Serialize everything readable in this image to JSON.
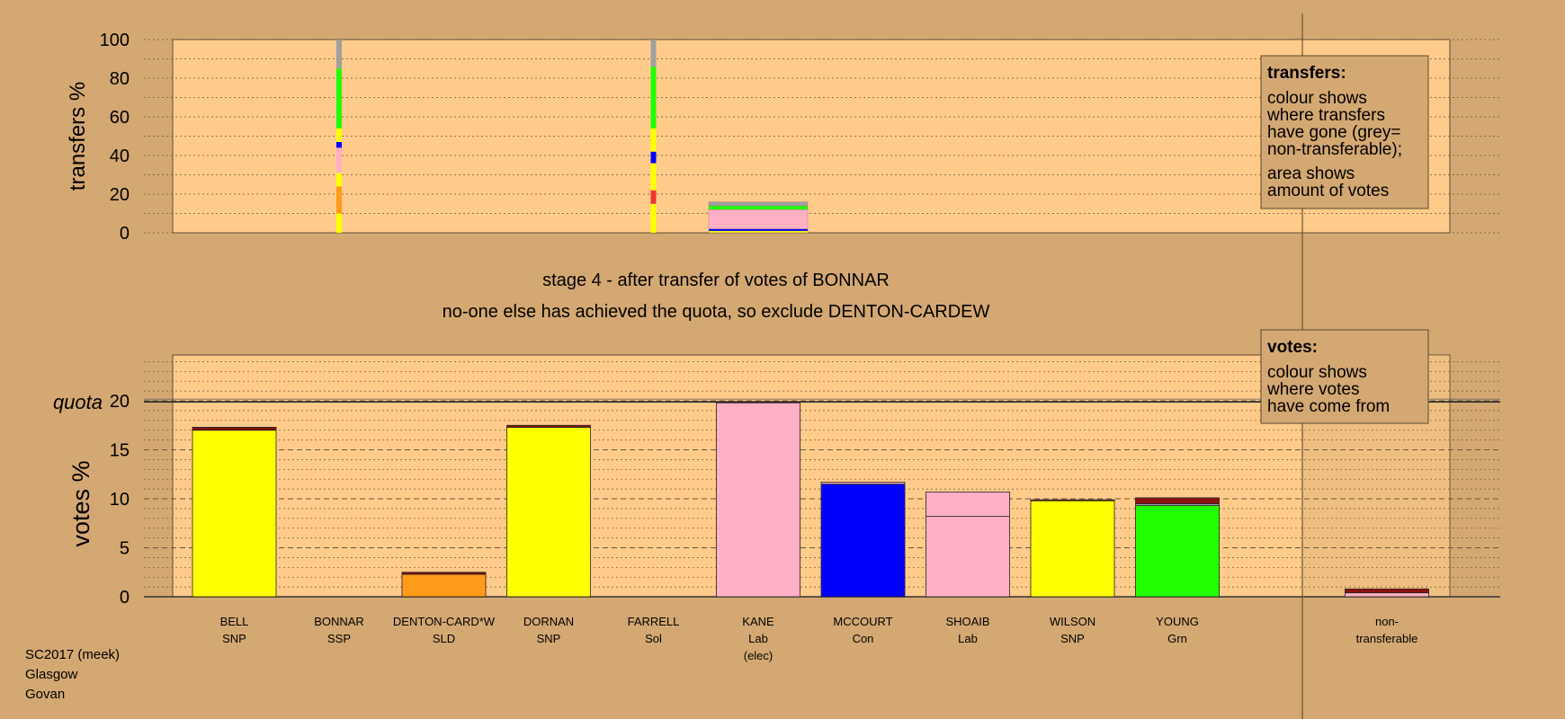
{
  "colors": {
    "page_bg": "#d4a873",
    "plot_bg": "#fecb8b",
    "SNP": "#ffff00",
    "SSP": "#ff9999",
    "SLD": "#ff9a1a",
    "Sol": "#ee3333",
    "Lab": "#ffb0c4",
    "Con": "#0000ff",
    "Grn": "#22ff00",
    "nontransferable": "#a0a0a0",
    "dark_red": "#8b1010"
  },
  "titles": {
    "stage": "stage 4 - after transfer of votes of BONNAR",
    "action": "no-one else has achieved the quota, so exclude DENTON-CARDEW"
  },
  "legend_transfers": {
    "heading": "transfers:",
    "lines": [
      "colour shows",
      "where transfers",
      "have gone (grey=",
      "non-transferable);",
      "area shows",
      "amount of votes"
    ]
  },
  "legend_votes": {
    "heading": "votes:",
    "lines": [
      "colour shows",
      "where votes",
      "have come from"
    ]
  },
  "footer": {
    "line1": "SC2017 (meek)",
    "line2": "Glasgow",
    "line3": "Govan"
  },
  "chart_data": [
    {
      "type": "bar",
      "id": "transfers",
      "ylabel": "transfers %",
      "ylim": [
        0,
        100
      ],
      "yticks": [
        0,
        20,
        40,
        60,
        80,
        100
      ],
      "grid": true,
      "columns": [
        {
          "candidate": "BONNAR",
          "kind": "line",
          "segments": [
            {
              "party": "SNP",
              "from": 0,
              "to": 10
            },
            {
              "party": "SLD",
              "from": 10,
              "to": 24
            },
            {
              "party": "SNP",
              "from": 24,
              "to": 31
            },
            {
              "party": "Lab",
              "from": 31,
              "to": 44
            },
            {
              "party": "Con",
              "from": 44,
              "to": 47
            },
            {
              "party": "SNP",
              "from": 47,
              "to": 54
            },
            {
              "party": "Grn",
              "from": 54,
              "to": 85
            },
            {
              "party": "nontransferable",
              "from": 85,
              "to": 100
            }
          ]
        },
        {
          "candidate": "FARRELL",
          "kind": "line",
          "segments": [
            {
              "party": "SNP",
              "from": 0,
              "to": 15
            },
            {
              "party": "Sol",
              "from": 15,
              "to": 22
            },
            {
              "party": "SNP",
              "from": 22,
              "to": 36
            },
            {
              "party": "Con",
              "from": 36,
              "to": 42
            },
            {
              "party": "SNP",
              "from": 42,
              "to": 54
            },
            {
              "party": "Grn",
              "from": 54,
              "to": 86
            },
            {
              "party": "nontransferable",
              "from": 86,
              "to": 100
            }
          ]
        },
        {
          "candidate": "KANE",
          "kind": "box",
          "segments": [
            {
              "party": "SNP",
              "from": 0,
              "to": 1
            },
            {
              "party": "Con",
              "from": 1,
              "to": 2
            },
            {
              "party": "Lab",
              "from": 2,
              "to": 12
            },
            {
              "party": "Grn",
              "from": 12,
              "to": 14
            },
            {
              "party": "nontransferable",
              "from": 14,
              "to": 16
            }
          ]
        }
      ]
    },
    {
      "type": "bar",
      "id": "votes",
      "ylabel": "votes %",
      "ylim": [
        0,
        25
      ],
      "yticks": [
        0,
        5,
        10,
        15,
        20
      ],
      "quota": 19.9,
      "quota_label": "quota",
      "grid": true,
      "categories": [
        {
          "name": "BELL",
          "party": "SNP"
        },
        {
          "name": "BONNAR",
          "party": "SSP"
        },
        {
          "name": "DENTON-CARD*W",
          "party": "SLD"
        },
        {
          "name": "DORNAN",
          "party": "SNP"
        },
        {
          "name": "FARRELL",
          "party": "Sol"
        },
        {
          "name": "KANE",
          "party": "Lab",
          "note": "(elec)"
        },
        {
          "name": "MCCOURT",
          "party": "Con"
        },
        {
          "name": "SHOAIB",
          "party": "Lab"
        },
        {
          "name": "WILSON",
          "party": "SNP"
        },
        {
          "name": "YOUNG",
          "party": "Grn"
        }
      ],
      "nontransferable_label": [
        "non-",
        "transferable"
      ],
      "bars": [
        {
          "segments": [
            {
              "party": "SNP",
              "value": 17.0
            },
            {
              "party": "dark_red",
              "value": 0.3
            }
          ]
        },
        {
          "segments": []
        },
        {
          "segments": [
            {
              "party": "SLD",
              "value": 2.3
            },
            {
              "party": "dark_red",
              "value": 0.2
            }
          ]
        },
        {
          "segments": [
            {
              "party": "SNP",
              "value": 17.3
            },
            {
              "party": "dark_red",
              "value": 0.2
            }
          ]
        },
        {
          "segments": []
        },
        {
          "segments": [
            {
              "party": "Lab",
              "value": 19.8
            },
            {
              "party": "dark_red",
              "value": 0.1
            }
          ]
        },
        {
          "segments": [
            {
              "party": "Con",
              "value": 11.5
            },
            {
              "party": "Lab",
              "value": 0.2
            }
          ]
        },
        {
          "segments": [
            {
              "party": "Lab",
              "value": 8.2
            },
            {
              "party": "Lab",
              "value": 2.5
            }
          ]
        },
        {
          "segments": [
            {
              "party": "SNP",
              "value": 9.8
            },
            {
              "party": "dark_red",
              "value": 0.1
            }
          ]
        },
        {
          "segments": [
            {
              "party": "Grn",
              "value": 9.3
            },
            {
              "party": "nontransferable",
              "value": 0.2
            },
            {
              "party": "dark_red",
              "value": 0.6
            }
          ]
        }
      ],
      "nontransferable": {
        "segments": [
          {
            "party": "Lab",
            "value": 0.4
          },
          {
            "party": "dark_red",
            "value": 0.4
          }
        ]
      }
    }
  ]
}
